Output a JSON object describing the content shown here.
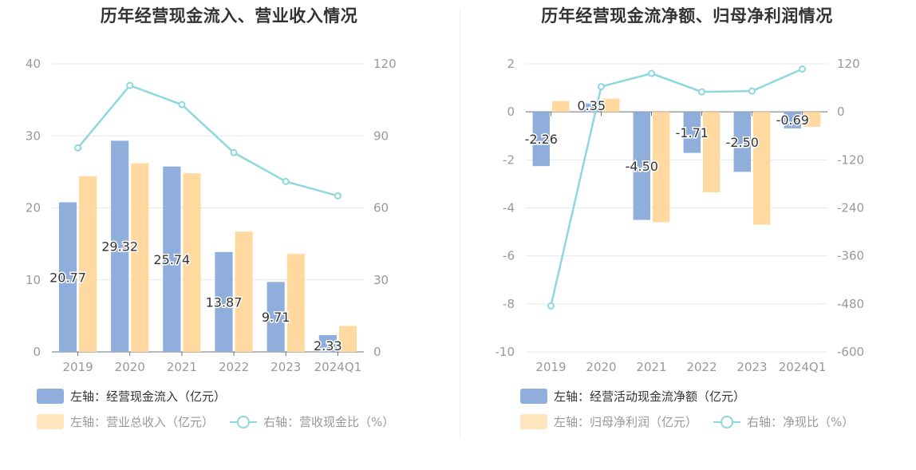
{
  "colors": {
    "bar_primary": "#8faedb",
    "bar_secondary": "#ffd9a0",
    "line": "#8dd8de",
    "axis_text": "#999999",
    "grid": "#e4e7f2"
  },
  "left": {
    "title": "历年经营现金流入、营业收入情况",
    "legend": {
      "bar1": "左轴：经营现金流入（亿元）",
      "bar2": "左轴：营业总收入（亿元）",
      "line": "右轴：营收现金比（%）"
    }
  },
  "right": {
    "title": "历年经营现金流净额、归母净利润情况",
    "legend": {
      "bar1": "左轴：经营活动现金流净额（亿元）",
      "bar2": "左轴：归母净利润（亿元）",
      "line": "右轴：净现比（%）"
    }
  },
  "chart_data": [
    {
      "type": "bar",
      "title": "历年经营现金流入、营业收入情况",
      "categories": [
        "2019",
        "2020",
        "2021",
        "2022",
        "2023",
        "2024Q1"
      ],
      "y_left": {
        "ylim": [
          0,
          40
        ],
        "ticks": [
          "0",
          "10",
          "20",
          "30",
          "40"
        ]
      },
      "y_right": {
        "ylim": [
          0,
          120
        ],
        "ticks": [
          "0",
          "30",
          "60",
          "90",
          "120"
        ]
      },
      "series": [
        {
          "name": "左轴：经营现金流入（亿元）",
          "axis": "left",
          "values": [
            20.77,
            29.32,
            25.74,
            13.87,
            9.71,
            2.33
          ],
          "labels": [
            "20.77",
            "29.32",
            "25.74",
            "13.87",
            "9.71",
            "2.33"
          ]
        },
        {
          "name": "左轴：营业总收入（亿元）",
          "axis": "left",
          "values": [
            24.4,
            26.2,
            24.8,
            16.7,
            13.6,
            3.6
          ]
        },
        {
          "name": "右轴：营收现金比（%）",
          "axis": "right",
          "kind": "line",
          "values": [
            85,
            111,
            103,
            83,
            71,
            65
          ]
        }
      ],
      "grid": true,
      "legend_position": "bottom-left"
    },
    {
      "type": "bar",
      "title": "历年经营现金流净额、归母净利润情况",
      "categories": [
        "2019",
        "2020",
        "2021",
        "2022",
        "2023",
        "2024Q1"
      ],
      "y_left": {
        "ylim": [
          -10,
          2
        ],
        "ticks": [
          "-10",
          "-8",
          "-6",
          "-4",
          "-2",
          "0",
          "2"
        ]
      },
      "y_right": {
        "ylim": [
          -600,
          120
        ],
        "ticks": [
          "-600",
          "-480",
          "-360",
          "-240",
          "-120",
          "0",
          "120"
        ]
      },
      "series": [
        {
          "name": "左轴：经营活动现金流净额（亿元）",
          "axis": "left",
          "values": [
            -2.26,
            0.35,
            -4.5,
            -1.71,
            -2.5,
            -0.69
          ],
          "labels": [
            "-2.26",
            "0.35",
            "-4.50",
            "-1.71",
            "-2.50",
            "-0.69"
          ]
        },
        {
          "name": "左轴：归母净利润（亿元）",
          "axis": "left",
          "values": [
            0.45,
            0.55,
            -4.6,
            -3.35,
            -4.7,
            -0.62
          ]
        },
        {
          "name": "右轴：净现比（%）",
          "axis": "right",
          "kind": "line",
          "values": [
            -485,
            63,
            96,
            50,
            52,
            107
          ]
        }
      ],
      "grid": true,
      "legend_position": "bottom-left"
    }
  ]
}
